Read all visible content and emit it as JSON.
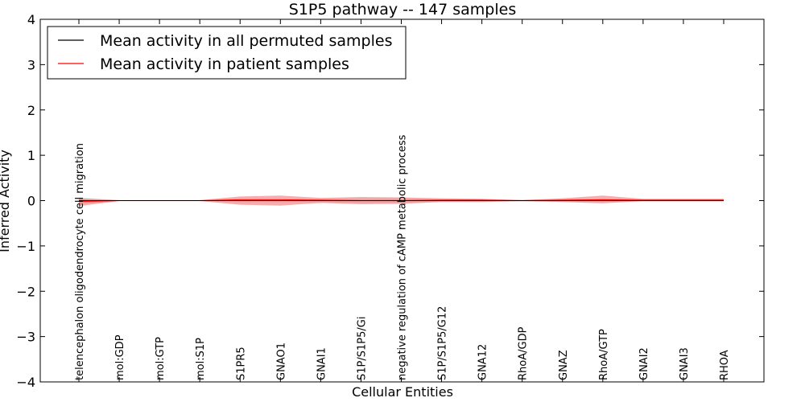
{
  "chart_data": {
    "type": "line",
    "title": "S1P5 pathway -- 147 samples",
    "xlabel": "Cellular Entities",
    "ylabel": "Inferred Activity",
    "ylim": [
      -4,
      4
    ],
    "yticks": [
      -4,
      -3,
      -2,
      -1,
      0,
      1,
      2,
      3,
      4
    ],
    "categories": [
      "telencephalon oligodendrocyte cell migration",
      "mol:GDP",
      "mol:GTP",
      "mol:S1P",
      "S1PR5",
      "GNAO1",
      "GNAI1",
      "S1P/S1P5/Gi",
      "negative regulation of cAMP metabolic process",
      "S1P/S1P5/G12",
      "GNA12",
      "RhoA/GDP",
      "GNAZ",
      "RhoA/GTP",
      "GNAI2",
      "GNAI3",
      "RHOA"
    ],
    "legend_position": "top-left",
    "series": [
      {
        "name": "Mean activity in all permuted samples",
        "color": "#000000",
        "values": [
          0.0,
          0.0,
          0.0,
          0.0,
          0.0,
          0.0,
          0.0,
          0.0,
          0.0,
          0.0,
          0.0,
          0.0,
          0.0,
          0.0,
          0.0,
          0.0,
          0.0
        ],
        "band_lower": [
          -0.07,
          -0.01,
          -0.01,
          -0.01,
          -0.03,
          -0.03,
          -0.03,
          -0.04,
          -0.04,
          -0.03,
          -0.03,
          -0.02,
          -0.03,
          -0.03,
          -0.03,
          -0.03,
          -0.03
        ],
        "band_upper": [
          0.07,
          0.01,
          0.01,
          0.01,
          0.03,
          0.03,
          0.03,
          0.04,
          0.04,
          0.03,
          0.03,
          0.02,
          0.03,
          0.03,
          0.03,
          0.03,
          0.03
        ]
      },
      {
        "name": "Mean activity in patient samples",
        "color": "#ff0000",
        "values": [
          -0.02,
          0.0,
          0.0,
          0.0,
          0.02,
          0.02,
          0.01,
          0.0,
          0.0,
          0.01,
          0.01,
          0.0,
          0.01,
          0.02,
          0.01,
          0.01,
          0.01
        ],
        "band_lower": [
          -0.12,
          -0.01,
          -0.01,
          -0.01,
          -0.09,
          -0.11,
          -0.05,
          -0.08,
          -0.07,
          -0.03,
          -0.03,
          -0.01,
          -0.03,
          -0.06,
          -0.01,
          -0.01,
          -0.01
        ],
        "band_upper": [
          0.05,
          0.01,
          0.01,
          0.01,
          0.09,
          0.11,
          0.06,
          0.08,
          0.07,
          0.05,
          0.04,
          0.01,
          0.05,
          0.11,
          0.04,
          0.04,
          0.04
        ]
      }
    ]
  }
}
